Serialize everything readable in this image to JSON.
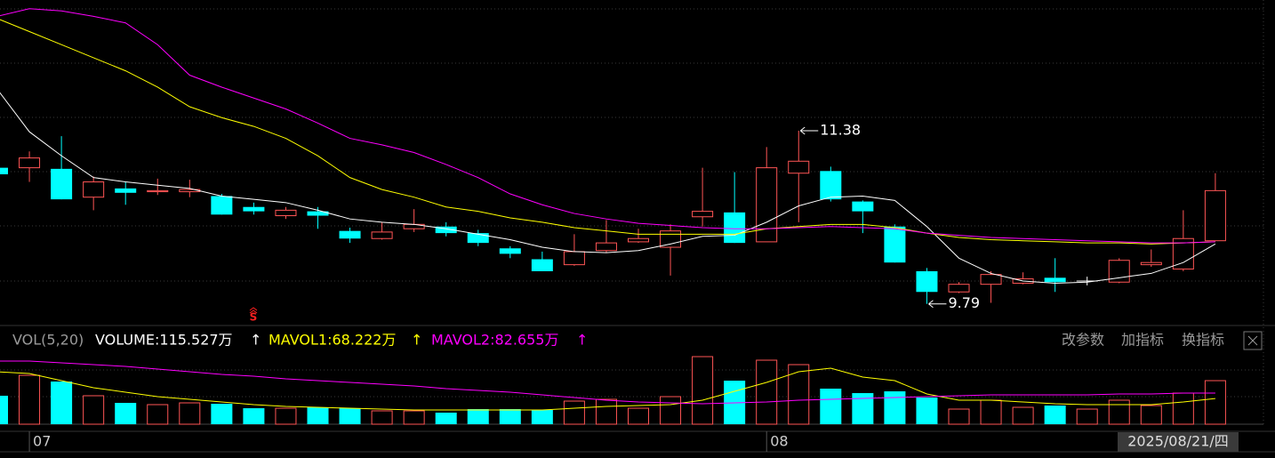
{
  "chart_data": [
    {
      "type": "candlestick",
      "categories": [
        null,
        "07",
        null,
        null,
        null,
        null,
        null,
        null,
        null,
        null,
        null,
        null,
        null,
        null,
        null,
        null,
        null,
        null,
        null,
        null,
        null,
        null,
        null,
        null,
        "08",
        null,
        null,
        null,
        null,
        null,
        null,
        null,
        null,
        null,
        null,
        null,
        null,
        null,
        null
      ],
      "open": [
        11.04,
        11.04,
        11.03,
        10.77,
        10.85,
        10.82,
        10.82,
        10.78,
        10.68,
        10.6,
        10.64,
        10.46,
        10.39,
        10.48,
        10.5,
        10.44,
        10.3,
        10.2,
        10.15,
        10.28,
        10.36,
        10.31,
        10.59,
        10.63,
        10.36,
        10.99,
        11.01,
        10.73,
        10.5,
        10.09,
        9.9,
        9.97,
        9.98,
        10.03,
        10.0,
        9.99,
        10.15,
        10.11,
        10.37
      ],
      "high": [
        11.04,
        11.19,
        11.33,
        10.96,
        10.91,
        10.94,
        10.93,
        10.8,
        10.72,
        10.68,
        10.68,
        10.49,
        10.54,
        10.66,
        10.54,
        10.47,
        10.32,
        10.27,
        10.43,
        10.56,
        10.48,
        10.52,
        11.04,
        11.0,
        11.23,
        11.38,
        11.05,
        10.74,
        10.52,
        10.12,
        9.99,
        10.09,
        10.08,
        10.21,
        10.04,
        10.21,
        10.29,
        10.65,
        10.99
      ],
      "low": [
        10.98,
        10.91,
        10.75,
        10.65,
        10.7,
        10.79,
        10.77,
        10.61,
        10.61,
        10.57,
        10.48,
        10.35,
        10.38,
        10.45,
        10.41,
        10.32,
        10.21,
        10.09,
        10.14,
        10.26,
        10.35,
        10.05,
        10.5,
        10.35,
        10.36,
        10.54,
        10.73,
        10.44,
        10.17,
        9.79,
        9.89,
        9.8,
        9.97,
        9.9,
        9.96,
        9.98,
        10.13,
        10.09,
        10.37
      ],
      "close": [
        10.98,
        11.13,
        10.75,
        10.91,
        10.81,
        10.83,
        10.84,
        10.61,
        10.64,
        10.65,
        10.6,
        10.39,
        10.45,
        10.52,
        10.44,
        10.35,
        10.25,
        10.09,
        10.27,
        10.35,
        10.39,
        10.46,
        10.64,
        10.35,
        11.04,
        11.1,
        10.75,
        10.64,
        10.17,
        9.9,
        9.97,
        10.06,
        10.02,
        9.99,
        10.0,
        10.19,
        10.17,
        10.39,
        10.83
      ],
      "up_color": "#ff5555",
      "down_color": "#00ffff",
      "flat_color": "#ffffff",
      "series": [
        {
          "color": "#ffffff",
          "values": [
            11.76,
            11.37,
            11.15,
            10.95,
            10.91,
            10.88,
            10.85,
            10.78,
            10.75,
            10.72,
            10.65,
            10.57,
            10.54,
            10.52,
            10.48,
            10.43,
            10.38,
            10.31,
            10.27,
            10.26,
            10.28,
            10.34,
            10.41,
            10.42,
            10.54,
            10.69,
            10.77,
            10.78,
            10.74,
            10.5,
            10.21,
            10.07,
            10.0,
            9.98,
            9.99,
            10.03,
            10.07,
            10.17,
            10.34
          ]
        },
        {
          "color": "#ffff00",
          "values": [
            12.41,
            12.29,
            12.17,
            12.05,
            11.93,
            11.78,
            11.6,
            11.5,
            11.42,
            11.31,
            11.15,
            10.95,
            10.84,
            10.77,
            10.68,
            10.64,
            10.58,
            10.54,
            10.49,
            10.46,
            10.43,
            10.43,
            10.43,
            10.43,
            10.48,
            10.5,
            10.52,
            10.52,
            10.49,
            10.44,
            10.4,
            10.38,
            10.37,
            10.36,
            10.35,
            10.35,
            10.34,
            10.35,
            10.36
          ]
        },
        {
          "color": "#ff00ff",
          "values": [
            12.43,
            12.5,
            12.48,
            12.43,
            12.37,
            12.17,
            11.89,
            11.78,
            11.68,
            11.58,
            11.45,
            11.31,
            11.25,
            11.18,
            11.07,
            10.95,
            10.8,
            10.7,
            10.62,
            10.57,
            10.53,
            10.51,
            10.49,
            10.48,
            10.48,
            10.49,
            10.5,
            10.49,
            10.48,
            10.44,
            10.42,
            10.4,
            10.39,
            10.38,
            10.37,
            10.36,
            10.35,
            10.35,
            10.36
          ]
        }
      ],
      "ylim": [
        9.6,
        12.58
      ],
      "high_label": "11.38",
      "low_label": "9.79",
      "signal": "S"
    },
    {
      "type": "bar",
      "header": {
        "indicator": "VOL(5,20)",
        "volume": "VOLUME:115.527万",
        "mavol1": "MAVOL1:68.222万",
        "mavol2": "MAVOL2:82.655万",
        "arrow": "↑"
      },
      "values": [
        75.5,
        129.7,
        113.2,
        75.5,
        56.6,
        51.9,
        56.6,
        54.2,
        42.4,
        42.4,
        44.8,
        42.4,
        35.4,
        35.4,
        30.7,
        40.1,
        40.1,
        37.7,
        61.3,
        66.0,
        42.4,
        73.1,
        179.2,
        115.5,
        169.8,
        158.0,
        94.3,
        82.5,
        87.2,
        70.7,
        40.1,
        63.7,
        44.8,
        49.5,
        40.1,
        63.7,
        49.5,
        82.5,
        115.527
      ],
      "series": [
        {
          "name": "MAVOL1",
          "color": "#ffff00",
          "values": [
            139.1,
            134.4,
            115.5,
            96.7,
            84.9,
            73.1,
            66.0,
            59.0,
            51.9,
            47.2,
            44.8,
            42.4,
            40.1,
            37.7,
            37.7,
            37.7,
            37.7,
            37.7,
            42.4,
            47.2,
            49.5,
            51.9,
            63.7,
            87.2,
            110.8,
            139.1,
            148.6,
            125.0,
            115.5,
            80.2,
            63.7,
            63.7,
            59.0,
            54.2,
            51.9,
            51.9,
            51.9,
            59.0,
            68.222
          ]
        },
        {
          "name": "MAVOL2",
          "color": "#ff00ff",
          "values": [
            167.4,
            167.4,
            162.7,
            158.0,
            153.3,
            146.2,
            139.1,
            132.0,
            127.3,
            120.3,
            115.5,
            110.8,
            106.1,
            101.4,
            94.3,
            89.6,
            84.9,
            77.8,
            70.7,
            63.7,
            59.0,
            56.6,
            54.2,
            56.6,
            59.0,
            63.7,
            66.0,
            68.4,
            70.7,
            73.1,
            75.5,
            77.8,
            77.8,
            77.8,
            77.8,
            80.2,
            80.2,
            82.5,
            82.655
          ]
        }
      ],
      "ylim": [
        0,
        193.4
      ]
    }
  ],
  "ui": {
    "buttons": [
      "改参数",
      "加指标",
      "换指标"
    ],
    "cursor_date": "2025/08/21/四"
  }
}
